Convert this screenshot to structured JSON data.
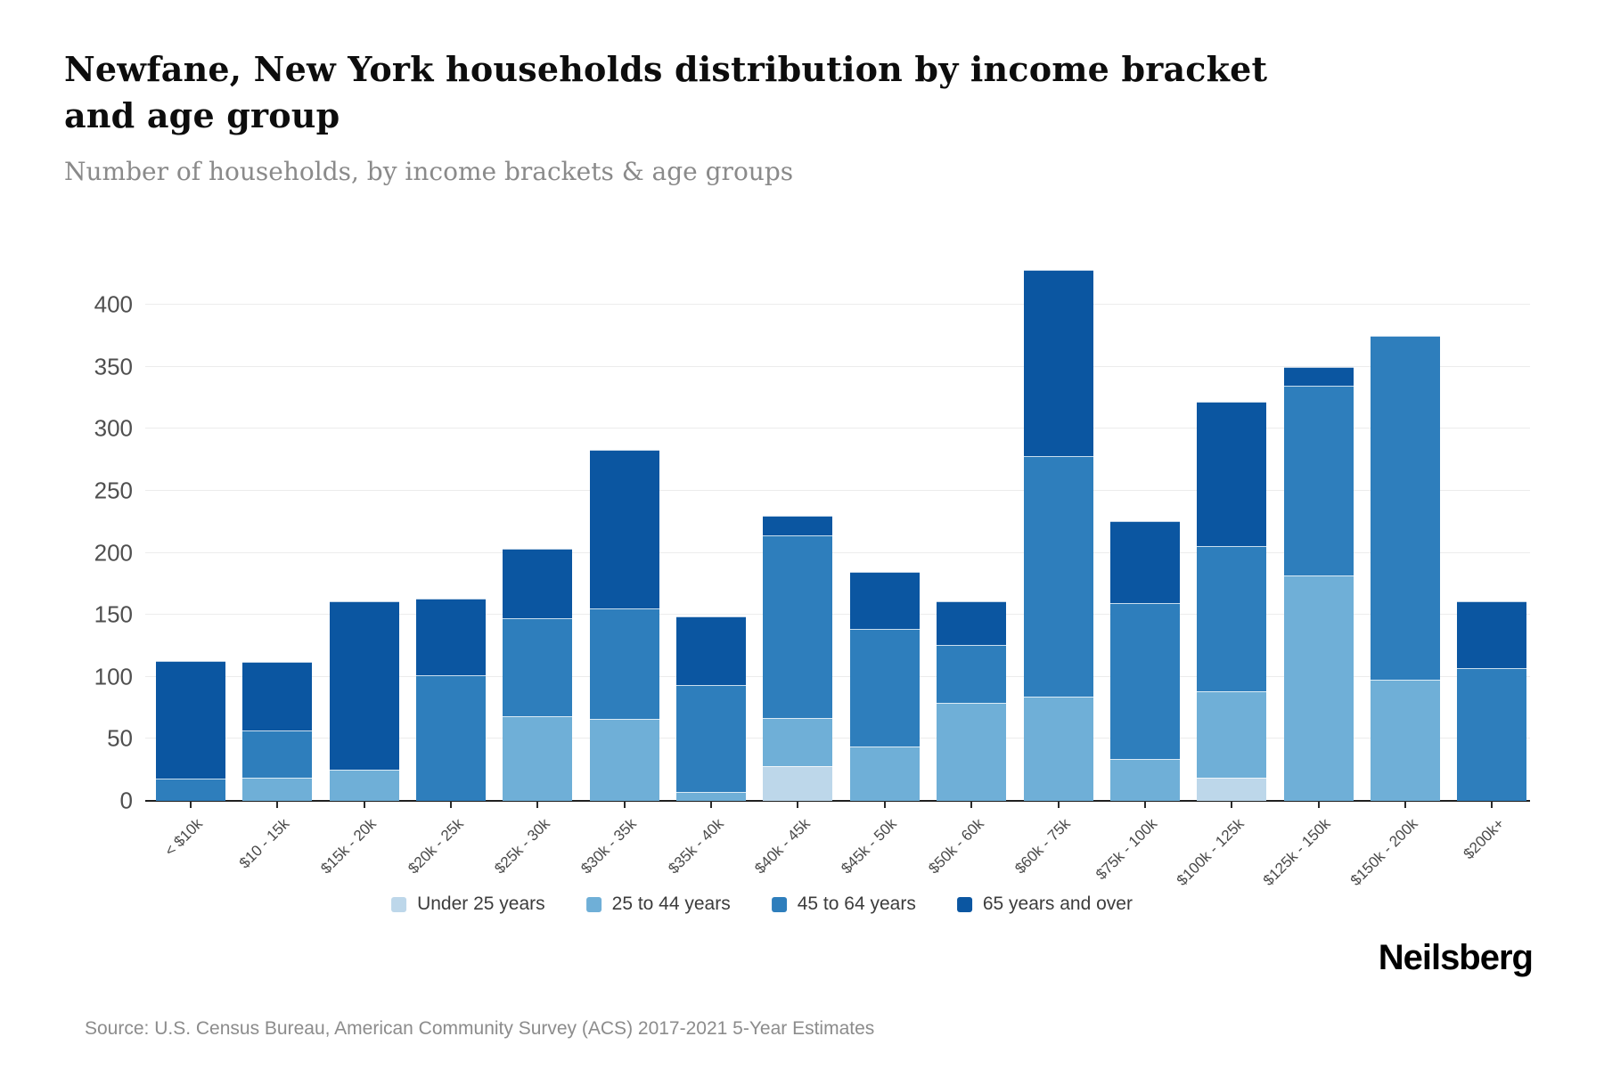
{
  "header": {
    "title": "Newfane, New York households distribution by income bracket and age group",
    "subtitle": "Number of households, by income brackets & age groups"
  },
  "footer": {
    "source": "Source: U.S. Census Bureau, American Community Survey (ACS) 2017-2021 5-Year Estimates",
    "brand": "Neilsberg"
  },
  "chart_data": {
    "type": "bar",
    "stacked": true,
    "title": "Newfane, New York households distribution by income bracket and age group",
    "subtitle": "Number of households, by income brackets & age groups",
    "xlabel": "",
    "ylabel": "",
    "grid": true,
    "legend_position": "bottom",
    "ylim": [
      0,
      450
    ],
    "yticks": [
      0,
      50,
      100,
      150,
      200,
      250,
      300,
      350,
      400
    ],
    "categories": [
      "< $10k",
      "$10 - 15k",
      "$15k - 20k",
      "$20k - 25k",
      "$25k - 30k",
      "$30k - 35k",
      "$35k - 40k",
      "$40k - 45k",
      "$45k - 50k",
      "$50k - 60k",
      "$60k - 75k",
      "$75k - 100k",
      "$100k - 125k",
      "$125k - 150k",
      "$150k - 200k",
      "$200k+"
    ],
    "series": [
      {
        "name": "Under 25 years",
        "color": "#bdd7ea",
        "values": [
          0,
          0,
          0,
          0,
          0,
          0,
          0,
          28,
          0,
          0,
          0,
          0,
          19,
          0,
          0,
          0
        ]
      },
      {
        "name": "25 to 44 years",
        "color": "#6fafd7",
        "values": [
          0,
          19,
          25,
          0,
          68,
          66,
          7,
          39,
          44,
          79,
          84,
          34,
          70,
          182,
          98,
          0
        ]
      },
      {
        "name": "45 to 64 years",
        "color": "#2e7ebc",
        "values": [
          18,
          38,
          0,
          101,
          79,
          89,
          86,
          147,
          95,
          47,
          194,
          126,
          117,
          153,
          277,
          107
        ]
      },
      {
        "name": "65 years and over",
        "color": "#0b56a1",
        "values": [
          95,
          55,
          136,
          62,
          56,
          128,
          55,
          16,
          46,
          35,
          150,
          66,
          116,
          15,
          0,
          54
        ]
      }
    ],
    "totals": [
      113,
      112,
      161,
      163,
      203,
      283,
      148,
      230,
      185,
      161,
      428,
      226,
      322,
      350,
      375,
      161
    ]
  }
}
